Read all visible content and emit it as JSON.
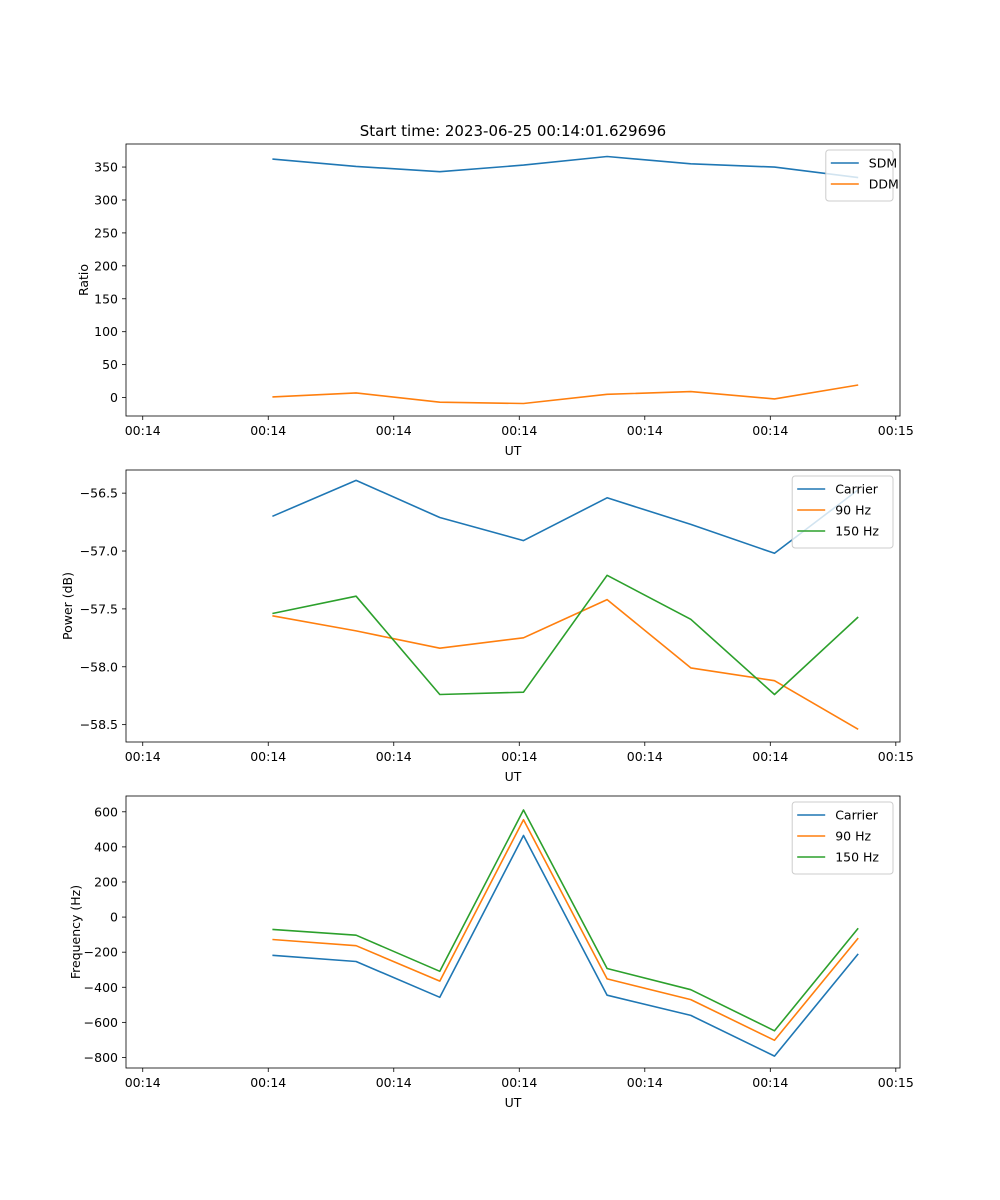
{
  "figure_title": "Start time: 2023-06-25 00:14:01.629696",
  "colors": {
    "blue": "#1f77b4",
    "orange": "#ff7f0e",
    "green": "#2ca02c"
  },
  "chart_data": [
    {
      "type": "line",
      "title": "Start time: 2023-06-25 00:14:01.629696",
      "xlabel": "UT",
      "ylabel": "Ratio",
      "x": [
        1,
        2,
        3,
        4,
        5,
        6,
        7,
        8
      ],
      "xlim": [
        -0.75,
        8.5
      ],
      "xticks": [
        -0.55,
        0.95,
        2.45,
        3.95,
        5.45,
        6.95,
        8.45
      ],
      "xtick_labels": [
        "00:14",
        "00:14",
        "00:14",
        "00:14",
        "00:14",
        "00:14",
        "00:15"
      ],
      "ylim": [
        -28,
        385
      ],
      "yticks": [
        0,
        50,
        100,
        150,
        200,
        250,
        300,
        350
      ],
      "ytick_labels": [
        "0",
        "50",
        "100",
        "150",
        "200",
        "250",
        "300",
        "350"
      ],
      "grid": false,
      "legend": "top-right",
      "series": [
        {
          "name": "SDM",
          "color": "#1f77b4",
          "values": [
            362,
            351,
            343,
            353,
            366,
            355,
            350,
            334
          ]
        },
        {
          "name": "DDM",
          "color": "#ff7f0e",
          "values": [
            1,
            7,
            -7,
            -9,
            5,
            9,
            -2,
            19
          ]
        }
      ]
    },
    {
      "type": "line",
      "title": "",
      "xlabel": "UT",
      "ylabel": "Power (dB)",
      "x": [
        1,
        2,
        3,
        4,
        5,
        6,
        7,
        8
      ],
      "xlim": [
        -0.75,
        8.5
      ],
      "xticks": [
        -0.55,
        0.95,
        2.45,
        3.95,
        5.45,
        6.95,
        8.45
      ],
      "xtick_labels": [
        "00:14",
        "00:14",
        "00:14",
        "00:14",
        "00:14",
        "00:14",
        "00:15"
      ],
      "ylim": [
        -58.65,
        -56.3
      ],
      "yticks": [
        -58.5,
        -58.0,
        -57.5,
        -57.0,
        -56.5
      ],
      "ytick_labels": [
        "−58.5",
        "−58.0",
        "−57.5",
        "−57.0",
        "−56.5"
      ],
      "grid": false,
      "legend": "top-right",
      "series": [
        {
          "name": "Carrier",
          "color": "#1f77b4",
          "values": [
            -56.7,
            -56.39,
            -56.71,
            -56.91,
            -56.54,
            -56.77,
            -57.02,
            -56.47
          ]
        },
        {
          "name": "90 Hz",
          "color": "#ff7f0e",
          "values": [
            -57.56,
            -57.69,
            -57.84,
            -57.75,
            -57.42,
            -58.01,
            -58.12,
            -58.54
          ]
        },
        {
          "name": "150 Hz",
          "color": "#2ca02c",
          "values": [
            -57.54,
            -57.39,
            -58.24,
            -58.22,
            -57.21,
            -57.59,
            -58.24,
            -57.57
          ]
        }
      ]
    },
    {
      "type": "line",
      "title": "",
      "xlabel": "UT",
      "ylabel": "Frequency (Hz)",
      "x": [
        1,
        2,
        3,
        4,
        5,
        6,
        7,
        8
      ],
      "xlim": [
        -0.75,
        8.5
      ],
      "xticks": [
        -0.55,
        0.95,
        2.45,
        3.95,
        5.45,
        6.95,
        8.45
      ],
      "xtick_labels": [
        "00:14",
        "00:14",
        "00:14",
        "00:14",
        "00:14",
        "00:14",
        "00:15"
      ],
      "ylim": [
        -860,
        690
      ],
      "yticks": [
        -800,
        -600,
        -400,
        -200,
        0,
        200,
        400,
        600
      ],
      "ytick_labels": [
        "−800",
        "−600",
        "−400",
        "−200",
        "0",
        "200",
        "400",
        "600"
      ],
      "grid": false,
      "legend": "top-right",
      "series": [
        {
          "name": "Carrier",
          "color": "#1f77b4",
          "values": [
            -218,
            -253,
            -457,
            465,
            -445,
            -560,
            -792,
            -210
          ]
        },
        {
          "name": "90 Hz",
          "color": "#ff7f0e",
          "values": [
            -128,
            -163,
            -365,
            555,
            -352,
            -470,
            -702,
            -120
          ]
        },
        {
          "name": "150 Hz",
          "color": "#2ca02c",
          "values": [
            -70,
            -103,
            -309,
            610,
            -293,
            -414,
            -648,
            -64
          ]
        }
      ]
    }
  ]
}
